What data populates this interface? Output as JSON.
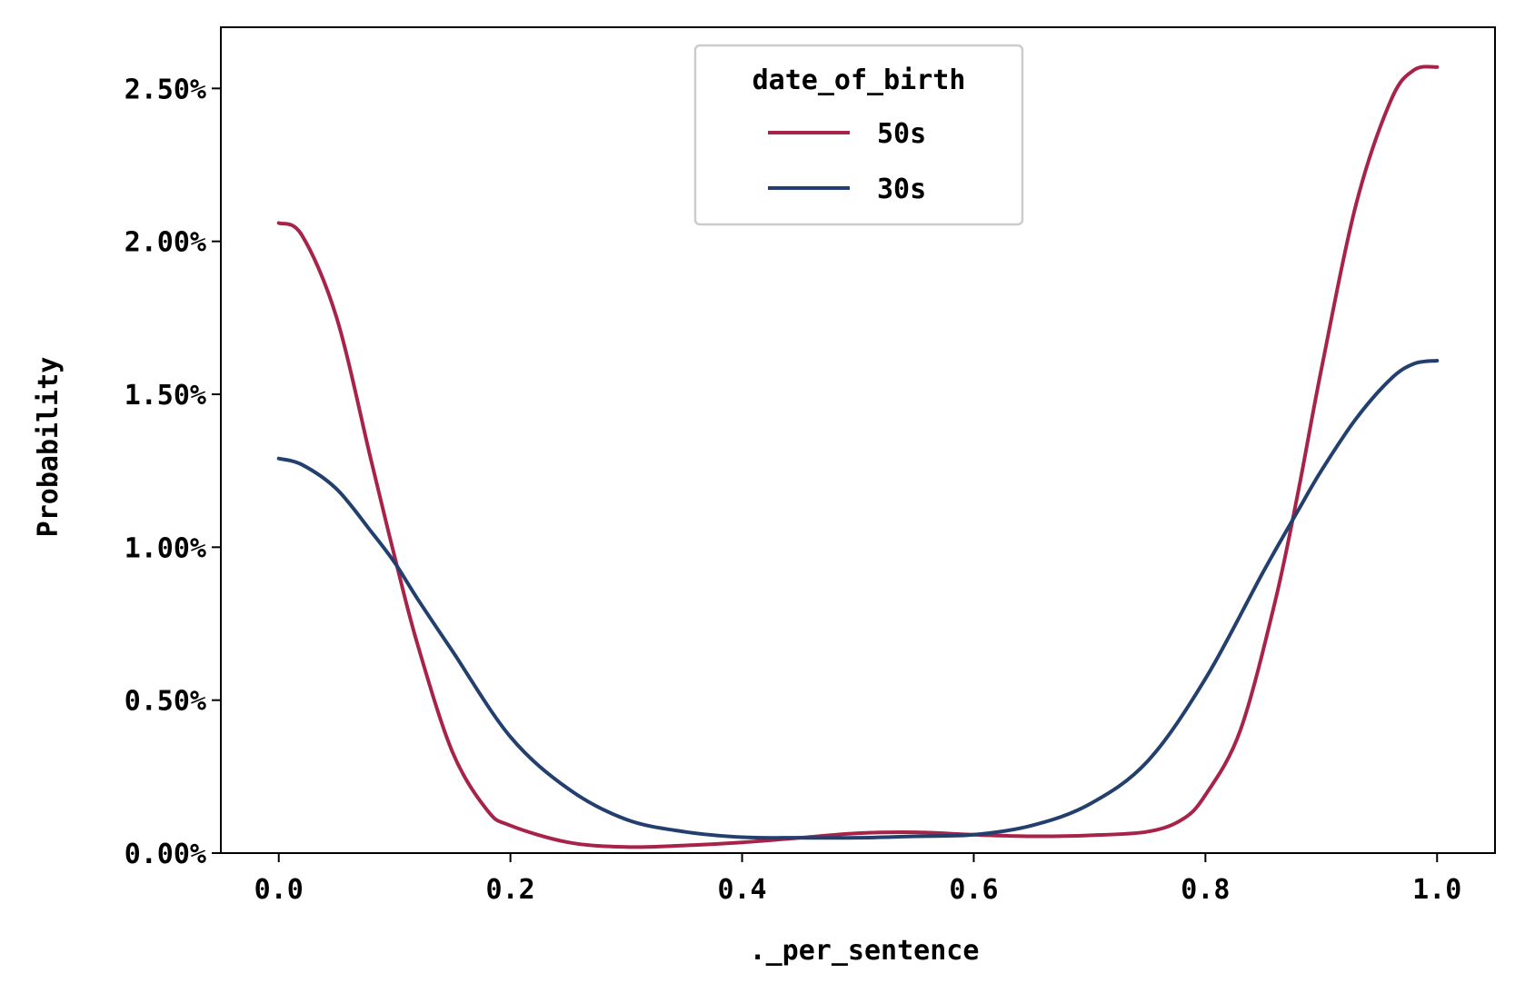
{
  "chart_data": {
    "type": "line",
    "title": "",
    "xlabel": "._per_sentence",
    "ylabel": "Probability",
    "xlim": [
      -0.05,
      1.05
    ],
    "ylim": [
      0,
      0.027
    ],
    "xticks": [
      0.0,
      0.2,
      0.4,
      0.6,
      0.8,
      1.0
    ],
    "xtick_labels": [
      "0.0",
      "0.2",
      "0.4",
      "0.6",
      "0.8",
      "1.0"
    ],
    "yticks": [
      0,
      0.005,
      0.01,
      0.015,
      0.02,
      0.025
    ],
    "ytick_labels": [
      "0.00%",
      "0.50%",
      "1.00%",
      "1.50%",
      "2.00%",
      "2.50%"
    ],
    "grid": false,
    "legend": {
      "title": "date_of_birth",
      "placement": "upper-center"
    },
    "series": [
      {
        "name": "50s",
        "color": "#a8234a",
        "x": [
          0.0,
          0.02,
          0.05,
          0.08,
          0.1,
          0.12,
          0.15,
          0.18,
          0.2,
          0.25,
          0.3,
          0.35,
          0.4,
          0.45,
          0.5,
          0.55,
          0.6,
          0.65,
          0.7,
          0.75,
          0.78,
          0.8,
          0.83,
          0.86,
          0.88,
          0.9,
          0.93,
          0.96,
          0.98,
          1.0
        ],
        "y": [
          0.0206,
          0.0202,
          0.0175,
          0.0128,
          0.0097,
          0.0068,
          0.0033,
          0.0014,
          0.0009,
          0.00035,
          0.0002,
          0.00025,
          0.00035,
          0.0005,
          0.00065,
          0.00068,
          0.0006,
          0.00055,
          0.00058,
          0.0007,
          0.0011,
          0.0019,
          0.004,
          0.0082,
          0.0118,
          0.0158,
          0.0212,
          0.0246,
          0.0256,
          0.0257
        ]
      },
      {
        "name": "30s",
        "color": "#223f6e",
        "x": [
          0.0,
          0.02,
          0.05,
          0.08,
          0.1,
          0.12,
          0.15,
          0.2,
          0.25,
          0.3,
          0.35,
          0.4,
          0.45,
          0.5,
          0.55,
          0.6,
          0.65,
          0.7,
          0.75,
          0.8,
          0.85,
          0.88,
          0.9,
          0.93,
          0.96,
          0.98,
          1.0
        ],
        "y": [
          0.0129,
          0.0127,
          0.0119,
          0.0105,
          0.0095,
          0.0083,
          0.0066,
          0.0038,
          0.0021,
          0.0011,
          0.0007,
          0.00052,
          0.0005,
          0.0005,
          0.00055,
          0.0006,
          0.0009,
          0.0016,
          0.003,
          0.0057,
          0.0092,
          0.0112,
          0.0125,
          0.0142,
          0.0155,
          0.016,
          0.0161
        ]
      }
    ]
  }
}
